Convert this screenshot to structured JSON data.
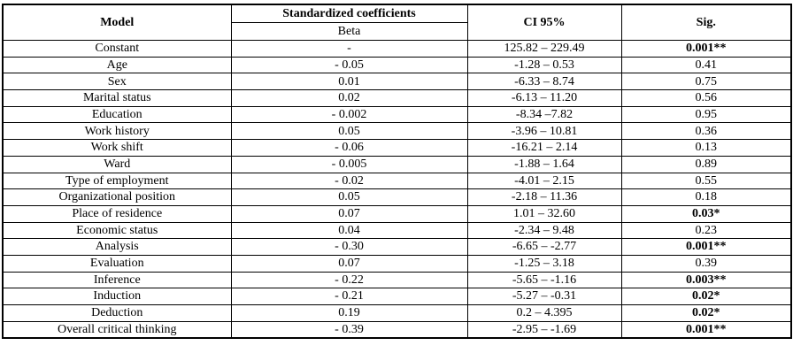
{
  "table": {
    "header": {
      "model": "Model",
      "standardized_coefficients": "Standardized coefficients",
      "beta": "Beta",
      "ci95": "CI 95%",
      "sig": "Sig."
    },
    "rows": [
      {
        "model": "Constant",
        "beta": "-",
        "ci": "125.82 – 229.49",
        "sig": "0.001**",
        "sig_bold": true
      },
      {
        "model": "Age",
        "beta": "- 0.05",
        "ci": "-1.28 – 0.53",
        "sig": "0.41",
        "sig_bold": false
      },
      {
        "model": "Sex",
        "beta": "0.01",
        "ci": "-6.33 – 8.74",
        "sig": "0.75",
        "sig_bold": false
      },
      {
        "model": "Marital status",
        "beta": "0.02",
        "ci": "-6.13 – 11.20",
        "sig": "0.56",
        "sig_bold": false
      },
      {
        "model": "Education",
        "beta": "- 0.002",
        "ci": "-8.34 –7.82",
        "sig": "0.95",
        "sig_bold": false
      },
      {
        "model": "Work history",
        "beta": "0.05",
        "ci": "-3.96 – 10.81",
        "sig": "0.36",
        "sig_bold": false
      },
      {
        "model": "Work shift",
        "beta": "- 0.06",
        "ci": "-16.21 – 2.14",
        "sig": "0.13",
        "sig_bold": false
      },
      {
        "model": "Ward",
        "beta": "- 0.005",
        "ci": "-1.88 – 1.64",
        "sig": "0.89",
        "sig_bold": false
      },
      {
        "model": "Type of employment",
        "beta": "- 0.02",
        "ci": "-4.01 – 2.15",
        "sig": "0.55",
        "sig_bold": false
      },
      {
        "model": "Organizational position",
        "beta": "0.05",
        "ci": "-2.18 – 11.36",
        "sig": "0.18",
        "sig_bold": false
      },
      {
        "model": "Place of residence",
        "beta": "0.07",
        "ci": "1.01 – 32.60",
        "sig": "0.03*",
        "sig_bold": true
      },
      {
        "model": "Economic status",
        "beta": "0.04",
        "ci": "-2.34 – 9.48",
        "sig": "0.23",
        "sig_bold": false
      },
      {
        "model": "Analysis",
        "beta": "- 0.30",
        "ci": "-6.65  –  -2.77",
        "sig": "0.001**",
        "sig_bold": true
      },
      {
        "model": "Evaluation",
        "beta": "0.07",
        "ci": "-1.25 – 3.18",
        "sig": "0.39",
        "sig_bold": false
      },
      {
        "model": "Inference",
        "beta": "- 0.22",
        "ci": "-5.65 – -1.16",
        "sig": "0.003**",
        "sig_bold": true
      },
      {
        "model": "Induction",
        "beta": "- 0.21",
        "ci": "-5.27 –  -0.31",
        "sig": "0.02*",
        "sig_bold": true
      },
      {
        "model": "Deduction",
        "beta": "0.19",
        "ci": "0.2 – 4.395",
        "sig": "0.02*",
        "sig_bold": true
      },
      {
        "model": "Overall critical thinking",
        "beta": "- 0.39",
        "ci": "-2.95  – -1.69",
        "sig": "0.001**",
        "sig_bold": true
      }
    ]
  }
}
